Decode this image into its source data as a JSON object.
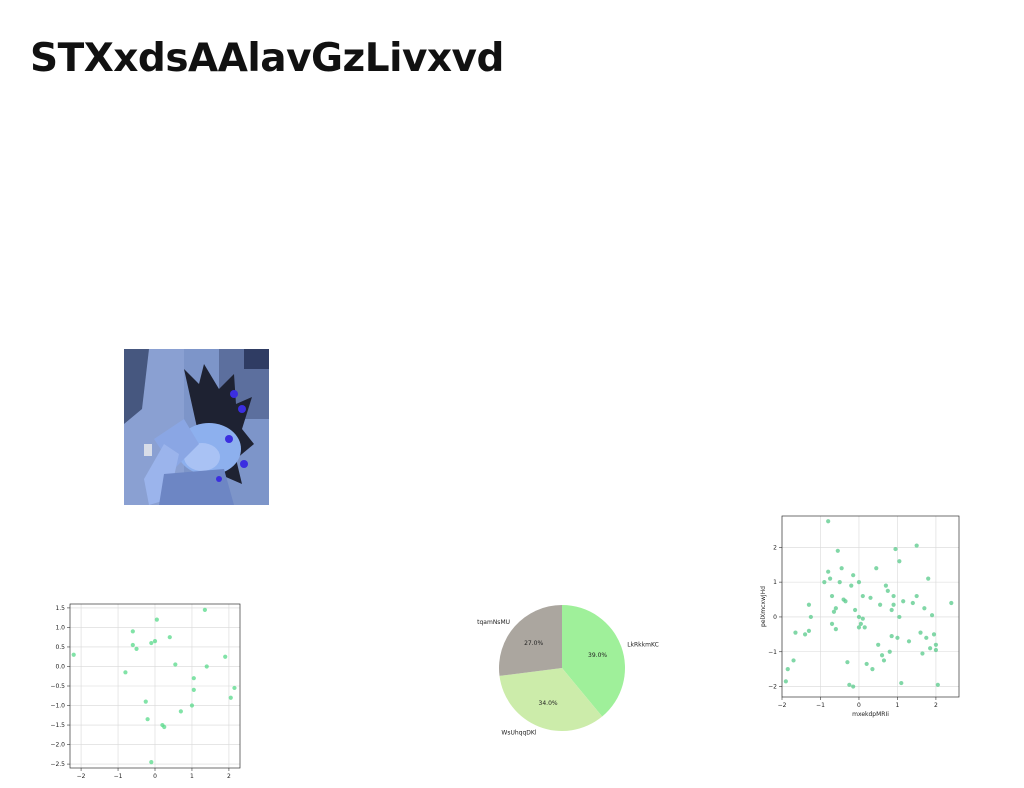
{
  "page": {
    "title": "STXxdsAAlavGzLivxvd"
  },
  "image": {
    "description_icon": "photo-icon"
  },
  "chart_data": [
    {
      "type": "scatter",
      "title": "",
      "xlabel": "",
      "ylabel": "",
      "xlim": [
        -2.3,
        2.3
      ],
      "ylim": [
        -2.6,
        1.6
      ],
      "xticks": [
        -2,
        -1,
        0,
        1,
        2
      ],
      "yticks": [
        -2.5,
        -2.0,
        -1.5,
        -1.0,
        -0.5,
        0.0,
        0.5,
        1.0,
        1.5
      ],
      "grid": true,
      "color": "#57d98a",
      "points": [
        [
          -2.2,
          0.3
        ],
        [
          -0.8,
          -0.15
        ],
        [
          -0.6,
          0.9
        ],
        [
          -0.6,
          0.55
        ],
        [
          -0.5,
          0.45
        ],
        [
          -0.25,
          -0.9
        ],
        [
          -0.2,
          -1.35
        ],
        [
          -0.1,
          0.6
        ],
        [
          0.0,
          0.65
        ],
        [
          0.05,
          1.2
        ],
        [
          -0.1,
          -2.45
        ],
        [
          0.2,
          -1.5
        ],
        [
          0.25,
          -1.55
        ],
        [
          0.4,
          0.75
        ],
        [
          0.55,
          0.05
        ],
        [
          0.7,
          -1.15
        ],
        [
          1.0,
          -1.0
        ],
        [
          1.05,
          -0.6
        ],
        [
          1.05,
          -0.3
        ],
        [
          1.35,
          1.45
        ],
        [
          1.4,
          0.0
        ],
        [
          1.9,
          0.25
        ],
        [
          2.05,
          -0.8
        ],
        [
          2.15,
          -0.55
        ]
      ]
    },
    {
      "type": "pie",
      "title": "",
      "labels": [
        "LkRkkmKC",
        "WsUhqqDKl",
        "tqamNsMU"
      ],
      "values": [
        39.0,
        34.0,
        27.0
      ],
      "value_labels": [
        "39.0%",
        "34.0%",
        "27.0%"
      ],
      "colors": [
        "#9ff09a",
        "#ccecaa",
        "#aba69f"
      ]
    },
    {
      "type": "scatter",
      "title": "",
      "xlabel": "mxekdpMRIi",
      "ylabel": "pelXmcxwJHd",
      "xlim": [
        -2.0,
        2.6
      ],
      "ylim": [
        -2.3,
        2.9
      ],
      "xticks": [
        -2,
        -1,
        0,
        1,
        2
      ],
      "yticks": [
        -2,
        -1,
        0,
        1,
        2
      ],
      "grid": true,
      "color": "#57c98a",
      "points": [
        [
          -1.9,
          -1.85
        ],
        [
          -1.85,
          -1.5
        ],
        [
          -1.7,
          -1.25
        ],
        [
          -1.65,
          -0.45
        ],
        [
          -1.4,
          -0.5
        ],
        [
          -1.3,
          0.35
        ],
        [
          -1.3,
          -0.4
        ],
        [
          -1.25,
          0.0
        ],
        [
          -0.9,
          1.0
        ],
        [
          -0.8,
          2.75
        ],
        [
          -0.8,
          1.3
        ],
        [
          -0.75,
          1.1
        ],
        [
          -0.7,
          0.6
        ],
        [
          -0.7,
          -0.2
        ],
        [
          -0.65,
          0.15
        ],
        [
          -0.6,
          0.25
        ],
        [
          -0.6,
          -0.35
        ],
        [
          -0.55,
          1.9
        ],
        [
          -0.5,
          1.0
        ],
        [
          -0.45,
          1.4
        ],
        [
          -0.4,
          0.5
        ],
        [
          -0.35,
          0.45
        ],
        [
          -0.3,
          -1.3
        ],
        [
          -0.25,
          -1.95
        ],
        [
          -0.2,
          0.9
        ],
        [
          -0.15,
          1.2
        ],
        [
          -0.15,
          -2.0
        ],
        [
          -0.1,
          0.2
        ],
        [
          0.0,
          1.0
        ],
        [
          0.0,
          -0.3
        ],
        [
          0.0,
          0.0
        ],
        [
          0.05,
          -0.2
        ],
        [
          0.1,
          0.6
        ],
        [
          0.1,
          -0.05
        ],
        [
          0.15,
          -0.3
        ],
        [
          0.2,
          -1.35
        ],
        [
          0.3,
          0.55
        ],
        [
          0.35,
          -1.5
        ],
        [
          0.45,
          1.4
        ],
        [
          0.5,
          -0.8
        ],
        [
          0.55,
          0.35
        ],
        [
          0.6,
          -1.1
        ],
        [
          0.65,
          -1.25
        ],
        [
          0.7,
          0.9
        ],
        [
          0.75,
          0.75
        ],
        [
          0.8,
          -1.0
        ],
        [
          0.85,
          0.2
        ],
        [
          0.85,
          -0.55
        ],
        [
          0.9,
          0.6
        ],
        [
          0.9,
          0.35
        ],
        [
          0.95,
          1.95
        ],
        [
          1.0,
          -0.6
        ],
        [
          1.05,
          0.0
        ],
        [
          1.05,
          1.6
        ],
        [
          1.1,
          -1.9
        ],
        [
          1.15,
          0.45
        ],
        [
          1.3,
          -0.7
        ],
        [
          1.4,
          0.4
        ],
        [
          1.5,
          2.05
        ],
        [
          1.5,
          0.6
        ],
        [
          1.6,
          -0.45
        ],
        [
          1.65,
          -1.05
        ],
        [
          1.7,
          0.25
        ],
        [
          1.75,
          -0.6
        ],
        [
          1.8,
          1.1
        ],
        [
          1.85,
          -0.9
        ],
        [
          1.9,
          0.05
        ],
        [
          1.95,
          -0.5
        ],
        [
          2.0,
          -0.8
        ],
        [
          2.0,
          -0.95
        ],
        [
          2.05,
          -1.95
        ],
        [
          2.4,
          0.4
        ]
      ]
    }
  ]
}
